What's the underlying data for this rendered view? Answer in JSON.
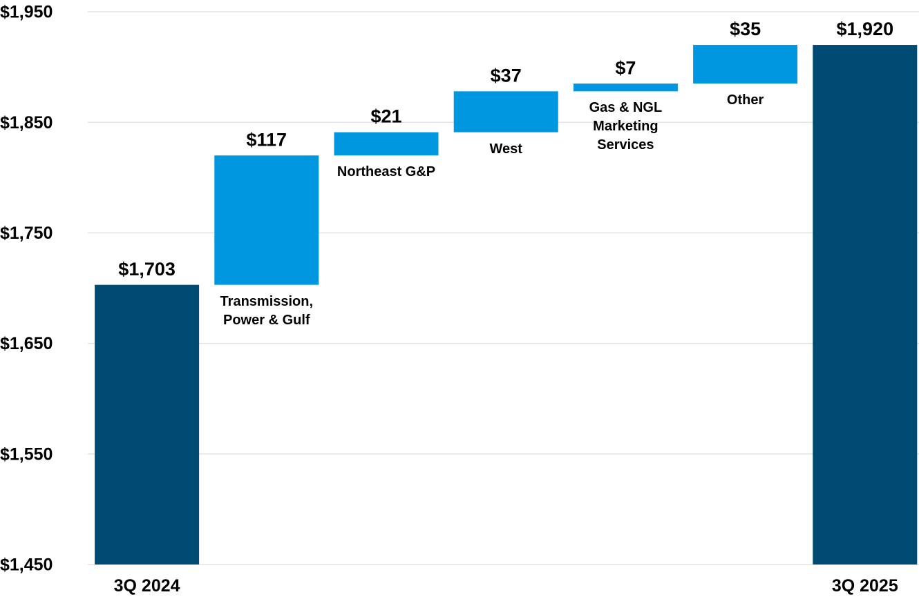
{
  "chart_data": {
    "type": "waterfall",
    "categories": [
      "3Q 2024",
      "Transmission, Power & Gulf",
      "Northeast G&P",
      "West",
      "Gas & NGL Marketing Services",
      "Other",
      "3Q 2025"
    ],
    "measures": [
      "absolute",
      "relative",
      "relative",
      "relative",
      "relative",
      "relative",
      "total"
    ],
    "values": [
      1703,
      117,
      21,
      37,
      7,
      35,
      1920
    ],
    "value_labels": [
      "$1,703",
      "$117",
      "$21",
      "$37",
      "$7",
      "$35",
      "$1,920"
    ],
    "total_color": "#004b73",
    "increase_color": "#0097e0",
    "ylim": [
      1450,
      1950
    ],
    "yticks": [
      {
        "value": 1450,
        "label": "$1,450"
      },
      {
        "value": 1550,
        "label": "$1,550"
      },
      {
        "value": 1650,
        "label": "$1,650"
      },
      {
        "value": 1750,
        "label": "$1,750"
      },
      {
        "value": 1850,
        "label": "$1,850"
      },
      {
        "value": 1950,
        "label": "$1,950"
      }
    ],
    "grid": true
  }
}
